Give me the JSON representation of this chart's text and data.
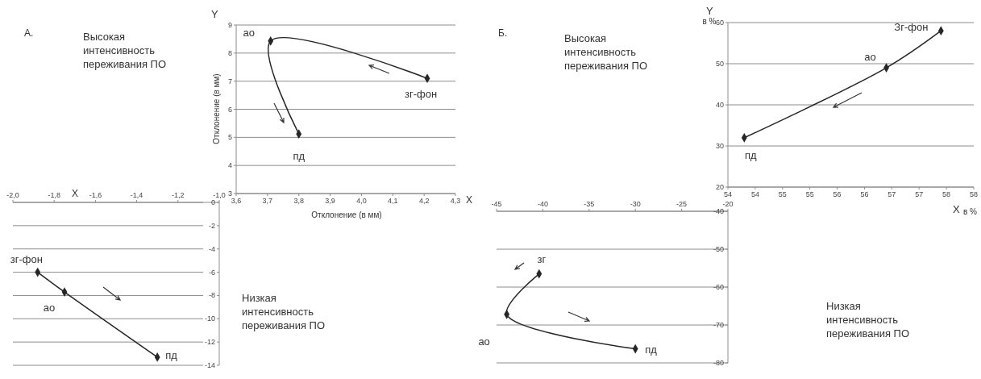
{
  "chart_data": [
    {
      "type": "line",
      "xlabel": "Отклонение  (в мм)",
      "ylabel": "Отклонение  (в мм)",
      "xlim": [
        3.6,
        4.3
      ],
      "ylim": [
        3,
        9
      ],
      "xticks": [
        {
          "value": 3.6,
          "label": "3,6"
        },
        {
          "value": 3.7,
          "label": "3,7"
        },
        {
          "value": 3.8,
          "label": "3,8"
        },
        {
          "value": 3.9,
          "label": "3,9"
        },
        {
          "value": 4.0,
          "label": "4,0"
        },
        {
          "value": 4.1,
          "label": "4,1"
        },
        {
          "value": 4.2,
          "label": "4,2"
        },
        {
          "value": 4.3,
          "label": "4,3"
        }
      ],
      "yticks": [
        3,
        4,
        5,
        6,
        7,
        8,
        9
      ],
      "grid": "y",
      "marker": "diamond",
      "line_style": "solid",
      "series": [
        {
          "color": "#262626",
          "x": [
            4.21,
            3.71,
            3.8
          ],
          "values": [
            7.1,
            8.43,
            5.12
          ]
        }
      ],
      "annotations": [
        "А.",
        "Высокая\nинтенсивность\nпереживания ПО",
        "Y",
        "X",
        {
          "text": "ао",
          "x": 3.71,
          "y": 8.43
        },
        {
          "text": "пд",
          "x": 3.8,
          "y": 5.12
        },
        {
          "text": "зг-фон",
          "x": 4.21,
          "y": 7.1
        }
      ]
    },
    {
      "type": "line",
      "xlim": [
        -2,
        -1
      ],
      "ylim": [
        -14,
        0
      ],
      "xticks": [
        {
          "value": -2,
          "label": "-2,0"
        },
        {
          "value": -1.8,
          "label": "-1,8"
        },
        {
          "value": -1.6,
          "label": "-1,6"
        },
        {
          "value": -1.4,
          "label": "-1,4"
        },
        {
          "value": -1.2,
          "label": "-1,2"
        },
        {
          "value": -1,
          "label": "-1,0"
        }
      ],
      "yticks": [
        0,
        -2,
        -4,
        -6,
        -8,
        -10,
        -12,
        -14
      ],
      "grid": "y",
      "marker": "diamond",
      "line_style": "solid",
      "series": [
        {
          "color": "#262626",
          "x": [
            -1.88,
            -1.75,
            -1.3
          ],
          "values": [
            -6,
            -7.7,
            -13.3
          ]
        }
      ],
      "annotations": [
        "X",
        "Низкая\nинтенсивность\nпереживания ПО",
        {
          "text": "зг-фон",
          "x": -1.88,
          "y": -6
        },
        {
          "text": "ао",
          "x": -1.75,
          "y": -7.7
        },
        {
          "text": "пд",
          "x": -1.3,
          "y": -13.3
        }
      ]
    },
    {
      "type": "line",
      "xlabel": "в %",
      "ylabel": "в %",
      "xlim": [
        53.5,
        58
      ],
      "ylim": [
        20,
        60
      ],
      "xticks": [
        {
          "value": 53.5,
          "label": "54"
        },
        54,
        {
          "value": 54.5,
          "label": "55"
        },
        55,
        {
          "value": 55.5,
          "label": "56"
        },
        56,
        {
          "value": 56.5,
          "label": "57"
        },
        57,
        {
          "value": 57.5,
          "label": "58"
        },
        58
      ],
      "yticks": [
        20,
        30,
        40,
        50,
        60
      ],
      "grid": "y",
      "marker": "diamond",
      "line_style": "solid",
      "series": [
        {
          "color": "#262626",
          "x": [
            57.4,
            56.4,
            53.8
          ],
          "values": [
            58,
            49,
            32
          ]
        }
      ],
      "annotations": [
        "Б.",
        "Высокая\nинтенсивность\nпереживания ПО",
        "Y",
        "X",
        {
          "text": "Зг-фон",
          "x": 57.4,
          "y": 58
        },
        {
          "text": "ао",
          "x": 56.4,
          "y": 49
        },
        {
          "text": "пд",
          "x": 53.8,
          "y": 32
        }
      ]
    },
    {
      "type": "line",
      "xlim": [
        -45,
        -20
      ],
      "ylim": [
        -80,
        -40
      ],
      "xticks": [
        -45,
        -40,
        -35,
        -30,
        -25,
        -20
      ],
      "yticks": [
        -40,
        -50,
        -60,
        -70,
        -80
      ],
      "grid": "y",
      "marker": "diamond",
      "line_style": "solid",
      "series": [
        {
          "color": "#262626",
          "x": [
            -40.4,
            -43.9,
            -30
          ],
          "values": [
            -56.5,
            -67.2,
            -76.3
          ]
        }
      ],
      "annotations": [
        "Низкая\nинтенсивность\nпереживания ПО",
        {
          "text": "зг",
          "x": -40.4,
          "y": -56.5
        },
        {
          "text": "ао",
          "x": -43.9,
          "y": -67.2
        },
        {
          "text": "пд",
          "x": -30,
          "y": -76.3
        }
      ]
    }
  ]
}
